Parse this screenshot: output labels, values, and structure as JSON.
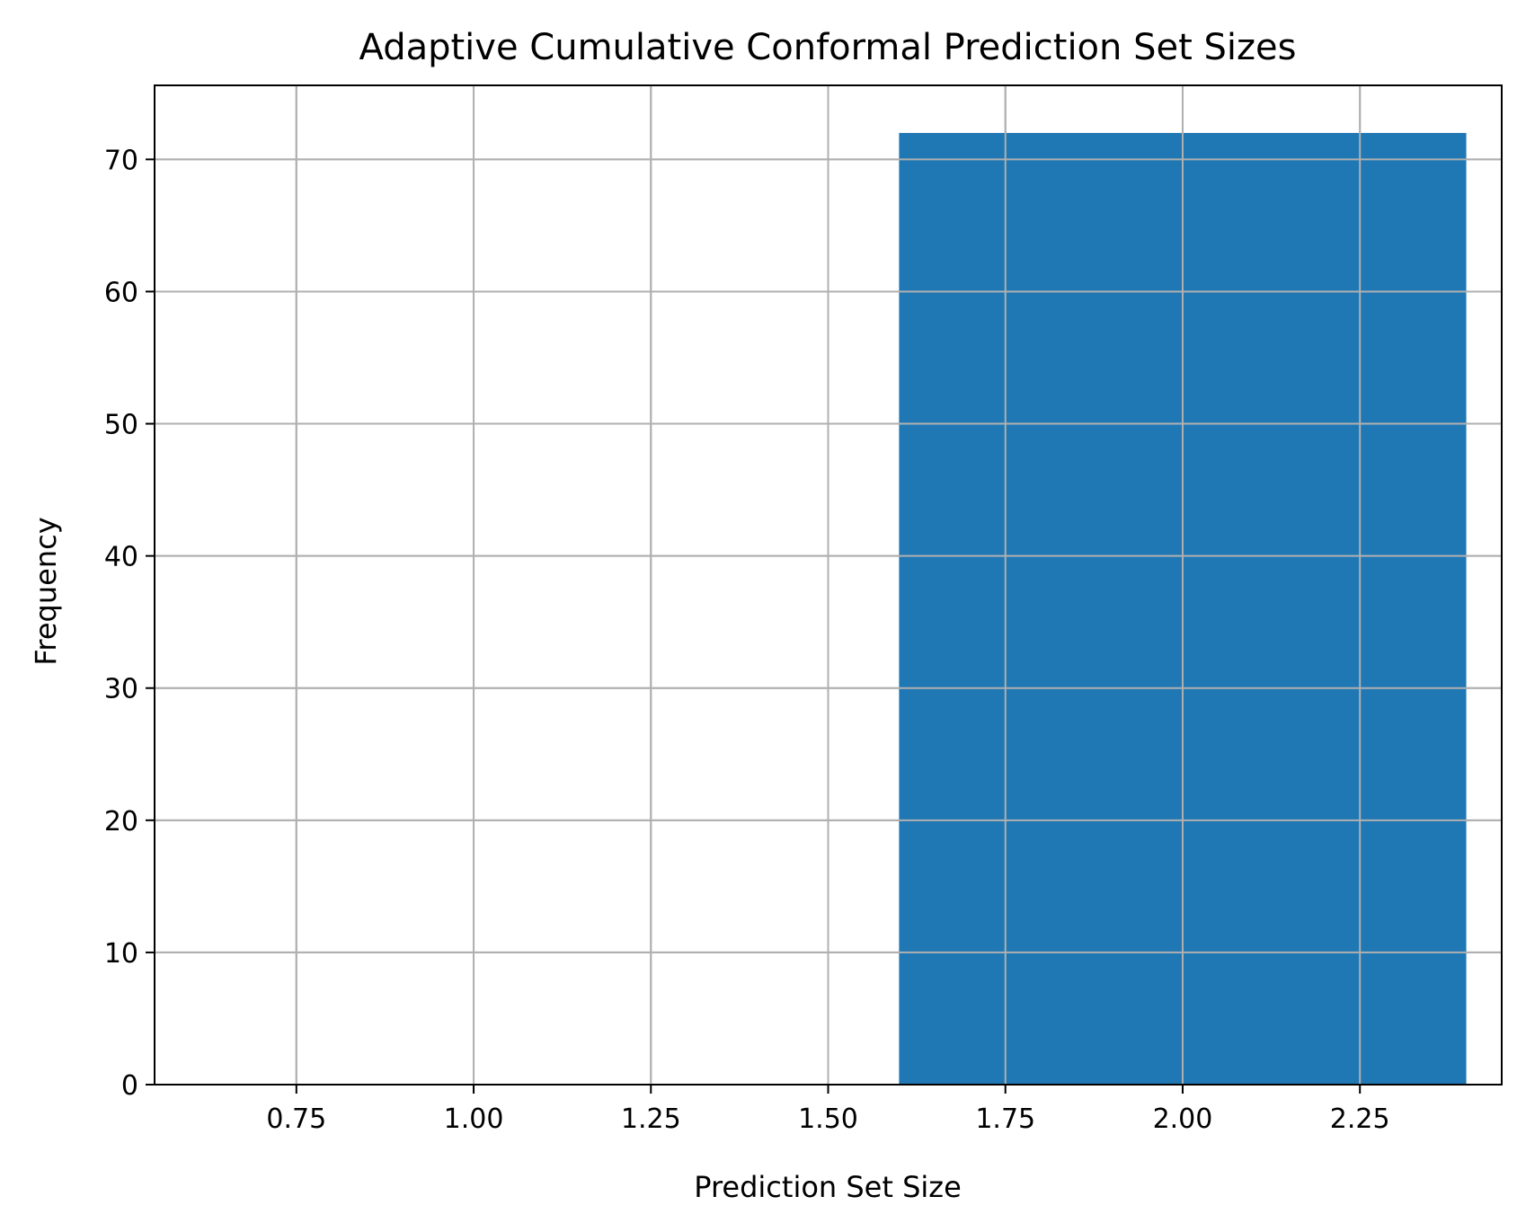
{
  "chart_data": {
    "type": "bar",
    "title": "Adaptive Cumulative Conformal Prediction Set Sizes",
    "xlabel": "Prediction Set Size",
    "ylabel": "Frequency",
    "xlim": [
      0.55,
      2.45
    ],
    "ylim": [
      0,
      75.6
    ],
    "grid": true,
    "x_ticks": [
      0.75,
      1.0,
      1.25,
      1.5,
      1.75,
      2.0,
      2.25
    ],
    "x_tick_labels": [
      "0.75",
      "1.00",
      "1.25",
      "1.50",
      "1.75",
      "2.00",
      "2.25"
    ],
    "y_ticks": [
      0,
      10,
      20,
      30,
      40,
      50,
      60,
      70
    ],
    "y_tick_labels": [
      "0",
      "10",
      "20",
      "30",
      "40",
      "50",
      "60",
      "70"
    ],
    "bars": [
      {
        "x": 2,
        "width": 0.8,
        "value": 72
      }
    ],
    "colors": {
      "bar": "#1f77b4",
      "grid": "#b0b0b0",
      "axis": "#000000"
    }
  }
}
